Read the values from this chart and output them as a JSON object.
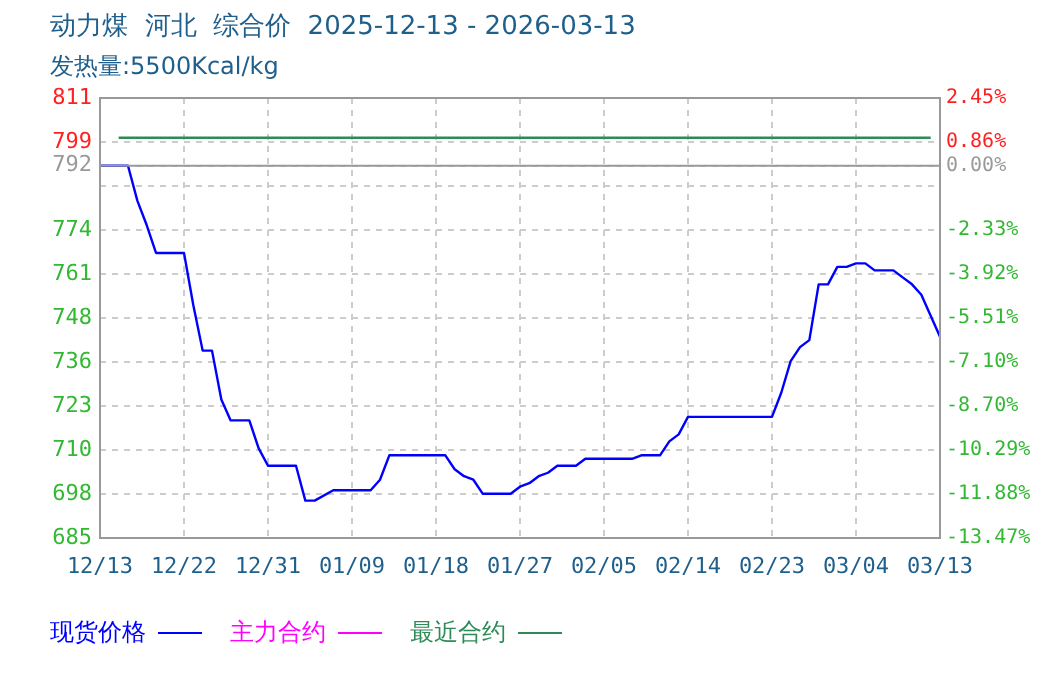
{
  "chart_data": {
    "type": "line",
    "title": "动力煤  河北  综合价  2025-12-13 - 2026-03-13",
    "subtitle": "发热量:5500Kcal/kg",
    "series": [
      {
        "name": "现货价格",
        "color": "#0000ff",
        "x": [
          "2025-12-13",
          "2025-12-16",
          "2025-12-17",
          "2025-12-18",
          "2025-12-19",
          "2025-12-22",
          "2025-12-23",
          "2025-12-24",
          "2025-12-25",
          "2025-12-26",
          "2025-12-27",
          "2025-12-29",
          "2025-12-30",
          "2025-12-31",
          "2026-01-03",
          "2026-01-04",
          "2026-01-05",
          "2026-01-07",
          "2026-01-11",
          "2026-01-12",
          "2026-01-13",
          "2026-01-19",
          "2026-01-20",
          "2026-01-21",
          "2026-01-22",
          "2026-01-23",
          "2026-01-26",
          "2026-01-27",
          "2026-01-28",
          "2026-01-29",
          "2026-01-30",
          "2026-01-31",
          "2026-02-02",
          "2026-02-03",
          "2026-02-08",
          "2026-02-09",
          "2026-02-11",
          "2026-02-12",
          "2026-02-13",
          "2026-02-14",
          "2026-02-23",
          "2026-02-24",
          "2026-02-25",
          "2026-02-26",
          "2026-02-27",
          "2026-02-28",
          "2026-03-01",
          "2026-03-02",
          "2026-03-03",
          "2026-03-04",
          "2026-03-05",
          "2026-03-06",
          "2026-03-08",
          "2026-03-09",
          "2026-03-10",
          "2026-03-11",
          "2026-03-12",
          "2026-03-13"
        ],
        "values": [
          792,
          792,
          782,
          775,
          767,
          767,
          752,
          739,
          739,
          725,
          719,
          719,
          711,
          706,
          706,
          696,
          696,
          699,
          699,
          702,
          709,
          709,
          705,
          703,
          702,
          698,
          698,
          700,
          701,
          703,
          704,
          706,
          706,
          708,
          708,
          709,
          709,
          713,
          715,
          720,
          720,
          727,
          736,
          740,
          742,
          758,
          758,
          763,
          763,
          764,
          764,
          762,
          762,
          760,
          758,
          755,
          749,
          743
        ]
      },
      {
        "name": "主力合约",
        "color": "#ff00ff"
      },
      {
        "name": "最近合约",
        "color": "#2e8b57",
        "x": [
          "2025-12-15",
          "2026-03-12"
        ],
        "values": [
          800,
          800
        ]
      }
    ],
    "xlim": [
      "2025-12-13",
      "2026-03-13"
    ],
    "xticks": [
      {
        "value": "2025-12-13",
        "label": "12/13"
      },
      {
        "value": "2025-12-22",
        "label": "12/22"
      },
      {
        "value": "2025-12-31",
        "label": "12/31"
      },
      {
        "value": "2026-01-09",
        "label": "01/09"
      },
      {
        "value": "2026-01-18",
        "label": "01/18"
      },
      {
        "value": "2026-01-27",
        "label": "01/27"
      },
      {
        "value": "2026-02-05",
        "label": "02/05"
      },
      {
        "value": "2026-02-14",
        "label": "02/14"
      },
      {
        "value": "2026-02-23",
        "label": "02/23"
      },
      {
        "value": "2026-03-04",
        "label": "03/04"
      },
      {
        "value": "2026-03-13",
        "label": "03/13"
      }
    ],
    "ylim": [
      685.3,
      811.4
    ],
    "yticks": [
      {
        "value": 811.4,
        "label": "811"
      },
      {
        "value": 798.8,
        "label": "799"
      },
      {
        "value": 792,
        "label": "792"
      },
      {
        "value": 786.2,
        "label": null
      },
      {
        "value": 773.5,
        "label": "774"
      },
      {
        "value": 760.9,
        "label": "761"
      },
      {
        "value": 748.4,
        "label": "748"
      },
      {
        "value": 735.6,
        "label": "736"
      },
      {
        "value": 723.1,
        "label": "723"
      },
      {
        "value": 710.5,
        "label": "710"
      },
      {
        "value": 697.9,
        "label": "698"
      },
      {
        "value": 685.3,
        "label": "685"
      }
    ],
    "y2lim": [
      -13.47,
      2.45
    ],
    "y2ticks": [
      {
        "value": 2.45,
        "label": "2.45%"
      },
      {
        "value": 0.86,
        "label": "0.86%"
      },
      {
        "value": 0,
        "label": "0.00%"
      },
      {
        "value": -2.33,
        "label": "-2.33%"
      },
      {
        "value": -3.92,
        "label": "-3.92%"
      },
      {
        "value": -5.51,
        "label": "-5.51%"
      },
      {
        "value": -7.1,
        "label": "-7.10%"
      },
      {
        "value": -8.7,
        "label": "-8.70%"
      },
      {
        "value": -10.29,
        "label": "-10.29%"
      },
      {
        "value": -11.88,
        "label": "-11.88%"
      },
      {
        "value": -13.47,
        "label": "-13.47%"
      }
    ],
    "ref_lines": [
      {
        "axis": "y",
        "value": 792,
        "color": "#999999"
      }
    ],
    "grid": true,
    "legend": "bottom left",
    "marker": "none",
    "line_style": "solid"
  }
}
